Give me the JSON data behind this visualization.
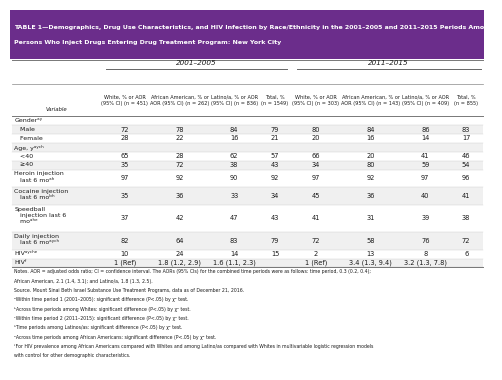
{
  "title_line1": "TABLE 1—Demographics, Drug Use Characteristics, and HIV Infection by Race/Ethnicity in the 2001–2005 and 2011–2015 Periods Among",
  "title_line2": "Persons Who Inject Drugs Entering Drug Treatment Program: New York City",
  "title_bg": "#6B2D8B",
  "title_color": "white",
  "period1": "2001–2005",
  "period2": "2011–2015",
  "col_headers": [
    "White, % or AOR\n(95% CI) (n = 451)",
    "African American, % or\nAOR (95% CI) (n = 262)",
    "Latino/a, % or AOR\n(95% CI) (n = 836)",
    "Total, %\n(n = 1549)",
    "White, % or AOR\n(95% CI) (n = 303)",
    "African American, % or\nAOR (95% CI) (n = 143)",
    "Latino/a, % or AOR\n(95% CI) (n = 409)",
    "Total, %\n(n = 855)"
  ],
  "row_label_col": "Variable",
  "rows": [
    {
      "label": "Genderᵃʸ",
      "values": [
        "",
        "",
        "",
        "",
        "",
        "",
        "",
        ""
      ],
      "section": true
    },
    {
      "label": "   Male",
      "values": [
        "72",
        "78",
        "84",
        "79",
        "80",
        "84",
        "86",
        "83"
      ],
      "section": false
    },
    {
      "label": "   Female",
      "values": [
        "28",
        "22",
        "16",
        "21",
        "20",
        "16",
        "14",
        "17"
      ],
      "section": false
    },
    {
      "label": "Age, yᵃʸᶜʰ",
      "values": [
        "",
        "",
        "",
        "",
        "",
        "",
        "",
        ""
      ],
      "section": true
    },
    {
      "label": "   <40",
      "values": [
        "65",
        "28",
        "62",
        "57",
        "66",
        "20",
        "41",
        "46"
      ],
      "section": false
    },
    {
      "label": "   ≥40",
      "values": [
        "35",
        "72",
        "38",
        "43",
        "34",
        "80",
        "59",
        "54"
      ],
      "section": false
    },
    {
      "label": "Heroin injection\n   last 6 moᵃʰ",
      "values": [
        "97",
        "92",
        "90",
        "92",
        "97",
        "92",
        "97",
        "96"
      ],
      "section": true
    },
    {
      "label": "Cocaine injection\n   last 6 moᵇʰ",
      "values": [
        "35",
        "36",
        "33",
        "34",
        "45",
        "36",
        "40",
        "41"
      ],
      "section": true
    },
    {
      "label": "Speedball\n   injection last 6\n   moᵃʰᵉ",
      "values": [
        "37",
        "42",
        "47",
        "43",
        "41",
        "31",
        "39",
        "38"
      ],
      "section": true
    },
    {
      "label": "Daily injection\n   last 6 moᵃʸᶜʰ",
      "values": [
        "82",
        "64",
        "83",
        "79",
        "72",
        "58",
        "76",
        "72"
      ],
      "section": true
    },
    {
      "label": "HIVᵃʸᶜʰᵉ",
      "values": [
        "10",
        "24",
        "14",
        "15",
        "2",
        "13",
        "8",
        "6"
      ],
      "section": true
    },
    {
      "label": "HIVᶠ",
      "values": [
        "1 (Ref)",
        "1.8 (1.2, 2.9)",
        "1.6 (1.1, 2.3)",
        "",
        "1 (Ref)",
        "3.4 (1.3, 9.4)",
        "3.2 (1.3, 7.8)",
        ""
      ],
      "section": true
    }
  ],
  "row_heights": [
    1,
    1,
    1,
    1,
    1,
    1,
    2,
    2,
    3,
    2,
    1,
    1
  ],
  "notes": [
    "Notes. AOR = adjusted odds ratio; CI = confidence interval. The AORs (95% CIs) for the combined time periods were as follows: time period, 0.3 (0.2, 0.4);",
    "African American, 2.1 (1.4, 3.1); and Latino/a, 1.8 (1.3, 2.5).",
    "Source. Mount Sinai Beth Israel Substance Use Treatment Programs, data as of December 21, 2016.",
    "ᵃWithin time period 1 (2001–2005): significant difference (P<.05) by χ² test.",
    "ᵇAcross time periods among Whites: significant difference (P<.05) by χ² test.",
    "ᶜWithin time period 2 (2011–2015): significant difference (P<.05) by χ² test.",
    "ʰTime periods among Latinos/as: significant difference (P<.05) by χ² test.",
    "ᵉAcross time periods among African Americans: significant difference (P<.05) by χ² test.",
    "ᶠFor HIV prevalence among African Americans compared with Whites and among Latino/as compared with Whites in multivariable logistic regression models",
    "with control for other demographic characteristics."
  ],
  "text_color": "#1a1a1a",
  "border_color": "#aaaaaa",
  "title_font_size": 4.5,
  "header_font_size": 3.6,
  "cell_font_size": 4.8,
  "label_font_size": 4.5,
  "notes_font_size": 3.3,
  "period_font_size": 5.2
}
